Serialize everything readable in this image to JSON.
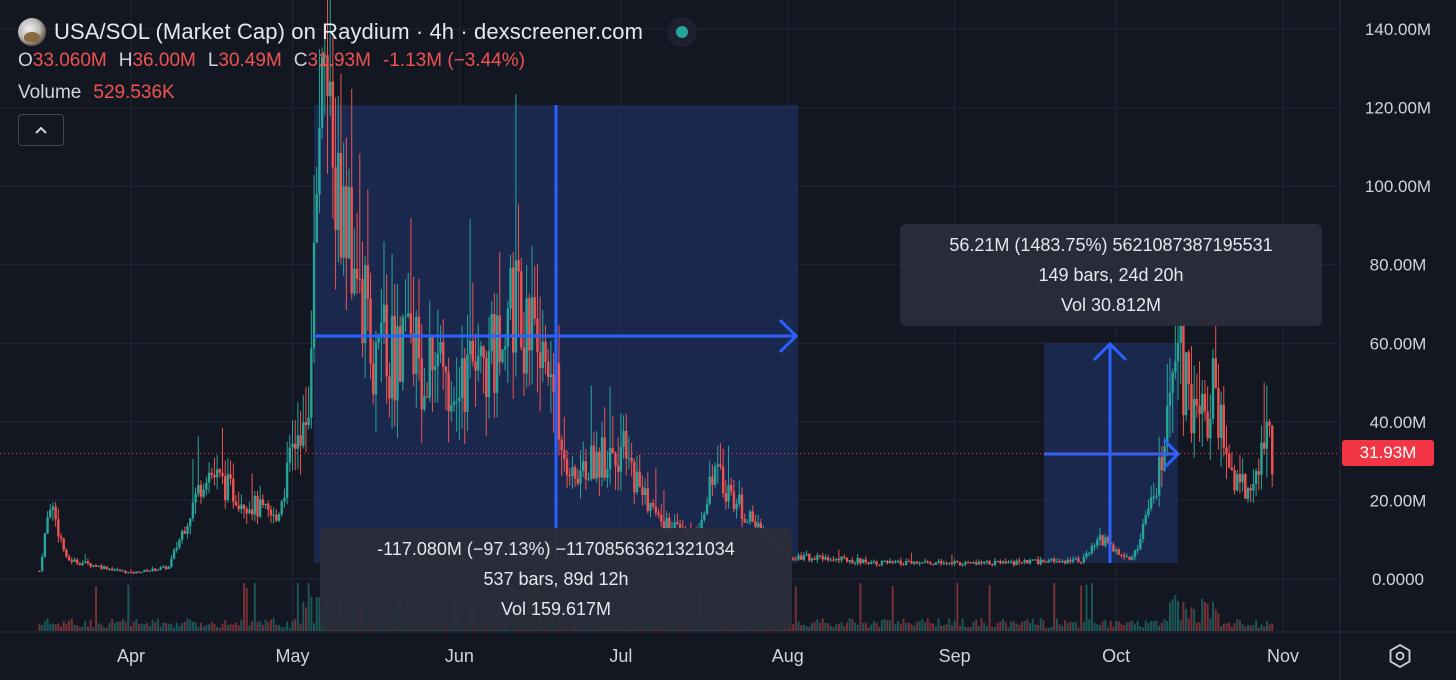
{
  "header": {
    "title": "USA/SOL (Market Cap) on Raydium · 4h · dexscreener.com",
    "ohlc": [
      {
        "key": "O",
        "value": "33.060M"
      },
      {
        "key": "H",
        "value": "36.00M"
      },
      {
        "key": "L",
        "value": "30.49M"
      },
      {
        "key": "C",
        "value": "31.93M"
      }
    ],
    "change": "-1.13M (−3.44%)",
    "volume_label": "Volume",
    "volume_value": "529.536K",
    "collapse_icon": "chevron-up-icon",
    "live_icon": "live-status-dot"
  },
  "price_tag": "31.93M",
  "measurements": {
    "left": {
      "line1": "-117.080M (−97.13%) −11708563621321034",
      "line2": "537 bars, 89d 12h",
      "line3": "Vol 159.617M"
    },
    "right": {
      "line1": "56.21M (1483.75%) 5621087387195531",
      "line2": "149 bars, 24d 20h",
      "line3": "Vol 30.812M"
    }
  },
  "colors": {
    "background": "#131722",
    "up": "#26a69a",
    "down": "#ef5350",
    "measure_line": "#2962ff",
    "measure_fill": "#1e2f5e",
    "price_tag": "#f23645",
    "grid": "#232632"
  },
  "chart_data": {
    "type": "candlestick",
    "series_label": "Market Cap",
    "interval": "4h",
    "y_ticks": [
      "140.00M",
      "120.00M",
      "100.00M",
      "80.00M",
      "60.00M",
      "40.00M",
      "20.00M",
      "0.0000"
    ],
    "y_tick_values": [
      140,
      120,
      100,
      80,
      60,
      40,
      20,
      0
    ],
    "ylim": [
      0,
      140
    ],
    "x_ticks": [
      "Apr",
      "May",
      "Jun",
      "Jul",
      "Aug",
      "Sep",
      "Oct",
      "Nov"
    ],
    "last_price": 31.93,
    "approx_path": [
      {
        "date": "Mar 15",
        "mcap": 2
      },
      {
        "date": "Mar 17",
        "mcap": 20
      },
      {
        "date": "Mar 20",
        "mcap": 5
      },
      {
        "date": "Apr 1",
        "mcap": 1.5
      },
      {
        "date": "Apr 8",
        "mcap": 3
      },
      {
        "date": "Apr 15",
        "mcap": 28
      },
      {
        "date": "Apr 20",
        "mcap": 22
      },
      {
        "date": "Apr 28",
        "mcap": 15
      },
      {
        "date": "May 4",
        "mcap": 50
      },
      {
        "date": "May 6",
        "mcap": 120
      },
      {
        "date": "May 10",
        "mcap": 90
      },
      {
        "date": "May 16",
        "mcap": 60
      },
      {
        "date": "May 25",
        "mcap": 55
      },
      {
        "date": "Jun 5",
        "mcap": 50
      },
      {
        "date": "Jun 12",
        "mcap": 70
      },
      {
        "date": "Jun 18",
        "mcap": 52
      },
      {
        "date": "Jun 22",
        "mcap": 25
      },
      {
        "date": "Jun 30",
        "mcap": 35
      },
      {
        "date": "Jul 8",
        "mcap": 15
      },
      {
        "date": "Jul 15",
        "mcap": 10
      },
      {
        "date": "Jul 18",
        "mcap": 28
      },
      {
        "date": "Jul 25",
        "mcap": 15
      },
      {
        "date": "Aug 1",
        "mcap": 6
      },
      {
        "date": "Aug 20",
        "mcap": 4
      },
      {
        "date": "Sep 10",
        "mcap": 4
      },
      {
        "date": "Sep 25",
        "mcap": 5
      },
      {
        "date": "Sep 28",
        "mcap": 10
      },
      {
        "date": "Oct 4",
        "mcap": 5
      },
      {
        "date": "Oct 8",
        "mcap": 20
      },
      {
        "date": "Oct 13",
        "mcap": 55
      },
      {
        "date": "Oct 16",
        "mcap": 40
      },
      {
        "date": "Oct 19",
        "mcap": 48
      },
      {
        "date": "Oct 23",
        "mcap": 25
      },
      {
        "date": "Oct 26",
        "mcap": 22
      },
      {
        "date": "Oct 29",
        "mcap": 38
      },
      {
        "date": "Oct 30",
        "mcap": 31.93
      }
    ]
  }
}
